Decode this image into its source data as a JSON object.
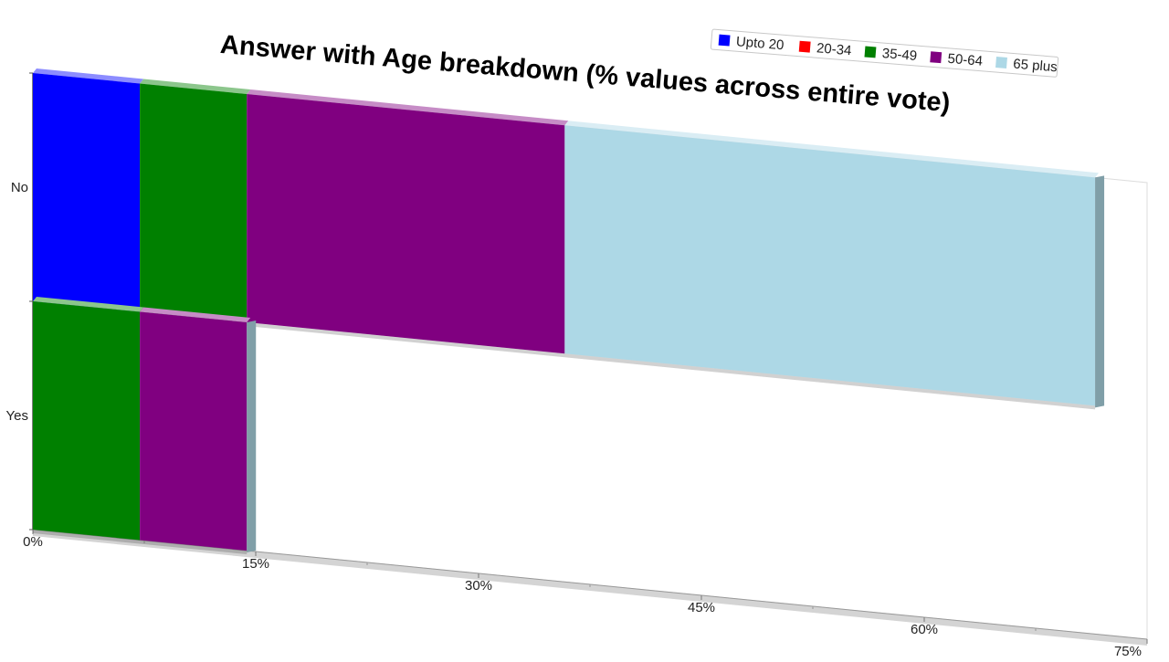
{
  "chart_data": {
    "type": "bar",
    "orientation": "horizontal",
    "stacked": true,
    "three_d": true,
    "title": "Answer with Age breakdown (% values across entire vote)",
    "categories": [
      "No",
      "Yes"
    ],
    "series": [
      {
        "name": "Upto 20",
        "color": "#0000ff",
        "values": [
          7.2,
          0
        ]
      },
      {
        "name": "20-34",
        "color": "#ff0000",
        "values": [
          0,
          0
        ]
      },
      {
        "name": "35-49",
        "color": "#008000",
        "values": [
          7.2,
          7.2
        ]
      },
      {
        "name": "50-64",
        "color": "#800080",
        "values": [
          21.4,
          7.2
        ]
      },
      {
        "name": "65 plus",
        "color": "#add8e6",
        "values": [
          35.7,
          0
        ]
      }
    ],
    "xlim": [
      0,
      75
    ],
    "xticks": [
      "0%",
      "15%",
      "30%",
      "45%",
      "60%",
      "75%"
    ],
    "legend_position": "top-right",
    "grid": false
  }
}
